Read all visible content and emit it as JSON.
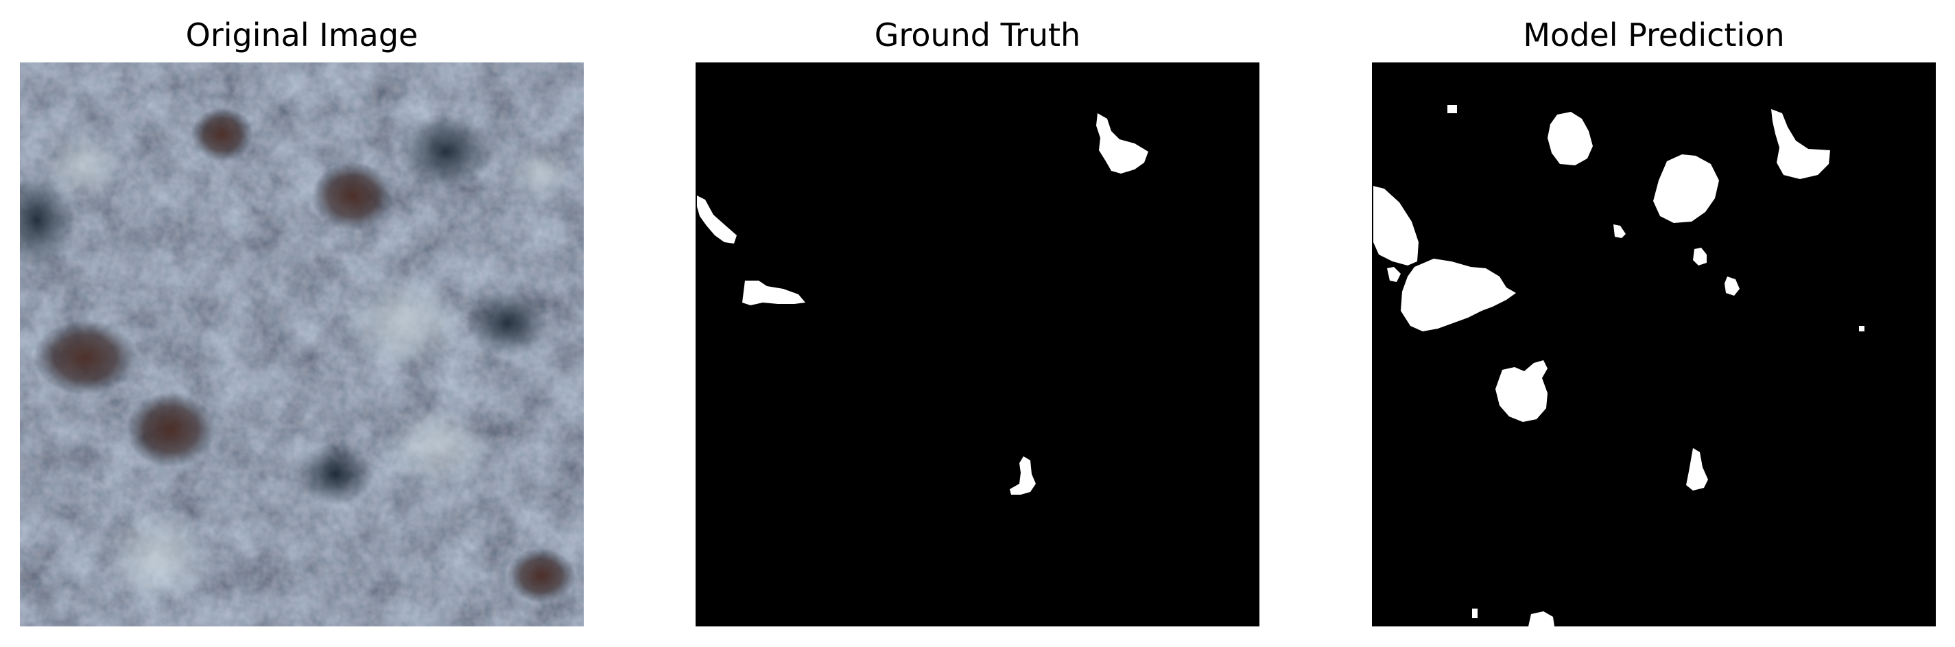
{
  "figure": {
    "panels": [
      {
        "title": "Original Image",
        "content": "histology-tissue-patch"
      },
      {
        "title": "Ground Truth",
        "content": "binary-segmentation-mask"
      },
      {
        "title": "Model Prediction",
        "content": "binary-segmentation-mask"
      }
    ]
  },
  "colors": {
    "mask_background": "#000000",
    "mask_foreground": "#ffffff",
    "tissue_dark": "#1e2f3f",
    "tissue_mid": "#4f6a7d",
    "tissue_light": "#9fb0bb",
    "nucleus_brown": "#4a2a22"
  }
}
